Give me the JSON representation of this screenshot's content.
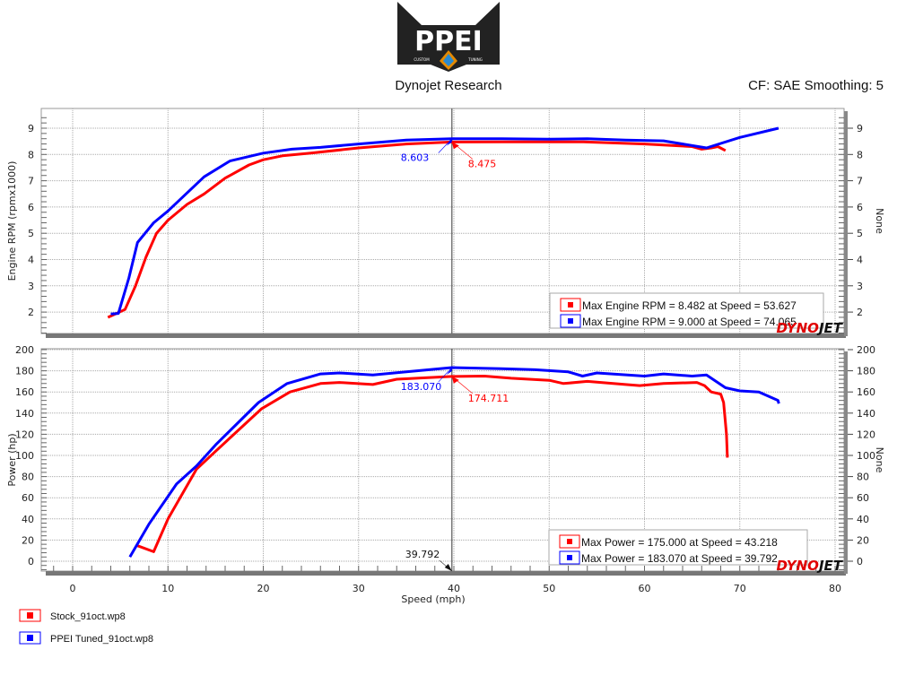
{
  "header": {
    "logo_text": "PPEI",
    "logo_sub_left": "CUSTOM",
    "logo_sub_right": "TUNING",
    "title": "Dynojet Research",
    "correction": "CF: SAE Smoothing: 5"
  },
  "watermark": "DYNOJET",
  "colors": {
    "stock": "#ff0000",
    "tuned": "#0000ff",
    "cursor": "#555555"
  },
  "files": [
    {
      "name": "Stock_91oct.wp8",
      "color": "#ff0000"
    },
    {
      "name": "PPEI Tuned_91oct.wp8",
      "color": "#0000ff"
    }
  ],
  "cursor": {
    "speed": 39.792,
    "label": "39.792"
  },
  "chart_data": [
    {
      "type": "line",
      "ylabel": "Engine RPM (rpmx1000)",
      "ylabel_right": "None",
      "xlabel": "Speed (mph)",
      "xlim": [
        -3,
        81
      ],
      "ylim": [
        1.2,
        9.8
      ],
      "xticks": [
        0,
        10,
        20,
        30,
        40,
        50,
        60,
        70,
        80
      ],
      "yticks": [
        2,
        3,
        4,
        5,
        6,
        7,
        8,
        9
      ],
      "grid": true,
      "legend": [
        {
          "text": "Max Engine RPM = 8.482 at Speed = 53.627",
          "color": "#ff0000"
        },
        {
          "text": "Max Engine RPM = 9.000 at Speed = 74.065",
          "color": "#0000ff"
        }
      ],
      "annotations": [
        {
          "text": "8.603",
          "x": 39.792,
          "y": 8.603,
          "color": "#0000ff"
        },
        {
          "text": "8.475",
          "x": 39.792,
          "y": 8.475,
          "color": "#ff0000"
        }
      ],
      "series": [
        {
          "file": "Stock_91oct.wp8",
          "color": "#ff0000",
          "x": [
            3.7,
            5.5,
            6.6,
            7.7,
            8.8,
            10,
            12,
            13.8,
            16,
            18.5,
            20,
            22,
            25,
            30,
            35,
            39.8,
            45,
            53.6,
            60,
            65,
            66,
            67,
            67.7,
            68.5
          ],
          "y": [
            1.8,
            2.1,
            3.0,
            4.1,
            5.0,
            5.5,
            6.1,
            6.5,
            7.1,
            7.6,
            7.8,
            7.95,
            8.05,
            8.25,
            8.4,
            8.475,
            8.48,
            8.48,
            8.4,
            8.3,
            8.2,
            8.25,
            8.3,
            8.15
          ]
        },
        {
          "file": "PPEI Tuned_91oct.wp8",
          "color": "#0000ff",
          "x": [
            4,
            4.8,
            5.9,
            6.8,
            8.5,
            10,
            13.8,
            16.5,
            20,
            23,
            26,
            30,
            35,
            39.8,
            45,
            50,
            54,
            58,
            62,
            66.5,
            70,
            74.065
          ],
          "y": [
            1.93,
            1.95,
            3.3,
            4.65,
            5.4,
            5.85,
            7.15,
            7.75,
            8.05,
            8.2,
            8.27,
            8.4,
            8.55,
            8.6,
            8.6,
            8.58,
            8.6,
            8.55,
            8.52,
            8.25,
            8.65,
            9.0
          ]
        }
      ]
    },
    {
      "type": "line",
      "ylabel": "Power (hp)",
      "ylabel_right": "None",
      "xlabel": "Speed (mph)",
      "xlim": [
        -3,
        81
      ],
      "ylim": [
        -12,
        200
      ],
      "xticks": [
        0,
        10,
        20,
        30,
        40,
        50,
        60,
        70,
        80
      ],
      "yticks": [
        0,
        20,
        40,
        60,
        80,
        100,
        120,
        140,
        160,
        180,
        200
      ],
      "grid": true,
      "legend": [
        {
          "text": "Max Power = 175.000 at Speed = 43.218",
          "color": "#ff0000"
        },
        {
          "text": "Max Power = 183.070 at Speed = 39.792",
          "color": "#0000ff"
        }
      ],
      "annotations": [
        {
          "text": "183.070",
          "x": 39.792,
          "y": 183.07,
          "color": "#0000ff"
        },
        {
          "text": "174.711",
          "x": 39.792,
          "y": 174.711,
          "color": "#ff0000"
        }
      ],
      "series": [
        {
          "file": "Stock_91oct.wp8",
          "color": "#ff0000",
          "x": [
            6.7,
            8.5,
            10,
            13,
            15,
            19.8,
            22.8,
            26,
            28,
            31.5,
            34,
            39.8,
            43.2,
            46,
            50,
            51.5,
            54,
            58,
            59.5,
            62,
            65.5,
            66.3,
            67,
            68,
            68.3,
            68.6,
            68.7
          ],
          "y": [
            15,
            9,
            40,
            87,
            104,
            144,
            160,
            168,
            169,
            167,
            172,
            174.7,
            175,
            173,
            171,
            168,
            170,
            167,
            166,
            168,
            169,
            166,
            160,
            158,
            150,
            120,
            98
          ]
        },
        {
          "file": "PPEI Tuned_91oct.wp8",
          "color": "#0000ff",
          "x": [
            6,
            8,
            10.9,
            13,
            15,
            19.5,
            22.5,
            26,
            28,
            31.5,
            35,
            39.8,
            45,
            48.5,
            52,
            53.5,
            55,
            60,
            62,
            65,
            66.5,
            67.5,
            68.5,
            70,
            72,
            74,
            74.1
          ],
          "y": [
            4,
            35,
            73,
            90,
            110,
            150,
            168,
            177,
            178,
            176,
            179,
            183.07,
            182,
            181,
            179,
            175,
            178,
            175,
            177,
            175,
            176,
            170,
            164,
            161,
            160,
            152,
            149
          ]
        }
      ]
    }
  ]
}
